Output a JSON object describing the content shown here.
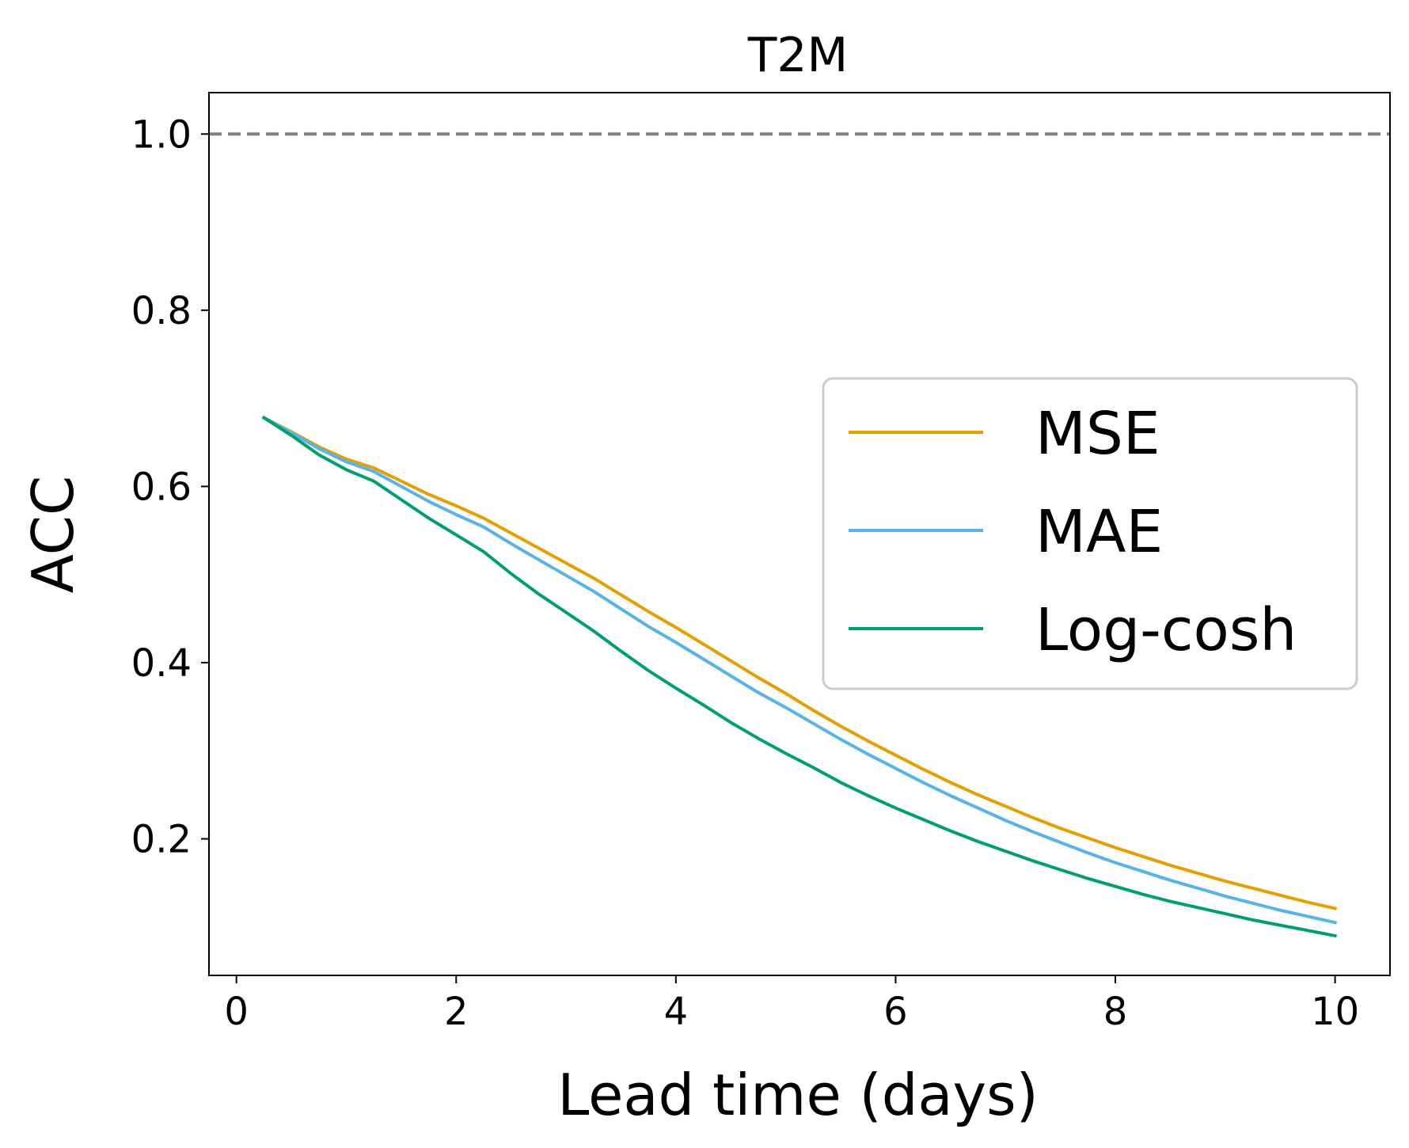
{
  "chart_data": {
    "type": "line",
    "title": "T2M",
    "xlabel": "Lead time (days)",
    "ylabel": "ACC",
    "xlim": [
      -0.25,
      10.5
    ],
    "ylim": [
      0.045,
      1.047
    ],
    "xticks": [
      0,
      2,
      4,
      6,
      8,
      10
    ],
    "xtick_labels": [
      "0",
      "2",
      "4",
      "6",
      "8",
      "10"
    ],
    "yticks": [
      0.2,
      0.4,
      0.6,
      0.8,
      1.0
    ],
    "ytick_labels": [
      "0.2",
      "0.4",
      "0.6",
      "0.8",
      "1.0"
    ],
    "grid": false,
    "legend_position": "center-right",
    "reference_line": {
      "y": 1.0,
      "style": "dashed",
      "color": "#808080"
    },
    "x": [
      0.25,
      0.5,
      0.75,
      1.0,
      1.25,
      1.5,
      1.75,
      2.0,
      2.25,
      2.5,
      2.75,
      3.0,
      3.25,
      3.5,
      3.75,
      4.0,
      4.25,
      4.5,
      4.75,
      5.0,
      5.25,
      5.5,
      5.75,
      6.0,
      6.25,
      6.5,
      6.75,
      7.0,
      7.25,
      7.5,
      7.75,
      8.0,
      8.25,
      8.5,
      8.75,
      9.0,
      9.25,
      9.5,
      9.75,
      10.0
    ],
    "series": [
      {
        "name": "MSE",
        "color": "#E69F00",
        "values": [
          0.678,
          0.662,
          0.645,
          0.631,
          0.621,
          0.606,
          0.591,
          0.578,
          0.564,
          0.547,
          0.53,
          0.513,
          0.496,
          0.477,
          0.458,
          0.44,
          0.421,
          0.402,
          0.383,
          0.365,
          0.346,
          0.328,
          0.311,
          0.295,
          0.279,
          0.264,
          0.25,
          0.237,
          0.224,
          0.212,
          0.201,
          0.19,
          0.18,
          0.17,
          0.161,
          0.152,
          0.144,
          0.136,
          0.128,
          0.121
        ]
      },
      {
        "name": "MAE",
        "color": "#56B4E9",
        "values": [
          0.678,
          0.661,
          0.643,
          0.628,
          0.617,
          0.6,
          0.583,
          0.568,
          0.554,
          0.535,
          0.517,
          0.499,
          0.481,
          0.461,
          0.441,
          0.423,
          0.404,
          0.385,
          0.366,
          0.349,
          0.331,
          0.313,
          0.296,
          0.28,
          0.264,
          0.249,
          0.235,
          0.221,
          0.208,
          0.196,
          0.184,
          0.173,
          0.163,
          0.153,
          0.144,
          0.135,
          0.127,
          0.119,
          0.112,
          0.105
        ]
      },
      {
        "name": "Log-cosh",
        "color": "#009E73",
        "values": [
          0.678,
          0.658,
          0.636,
          0.619,
          0.606,
          0.585,
          0.564,
          0.545,
          0.526,
          0.501,
          0.478,
          0.457,
          0.436,
          0.413,
          0.391,
          0.371,
          0.352,
          0.332,
          0.314,
          0.297,
          0.281,
          0.264,
          0.249,
          0.235,
          0.222,
          0.209,
          0.197,
          0.186,
          0.175,
          0.165,
          0.155,
          0.146,
          0.137,
          0.129,
          0.122,
          0.115,
          0.108,
          0.102,
          0.096,
          0.09
        ]
      }
    ]
  }
}
